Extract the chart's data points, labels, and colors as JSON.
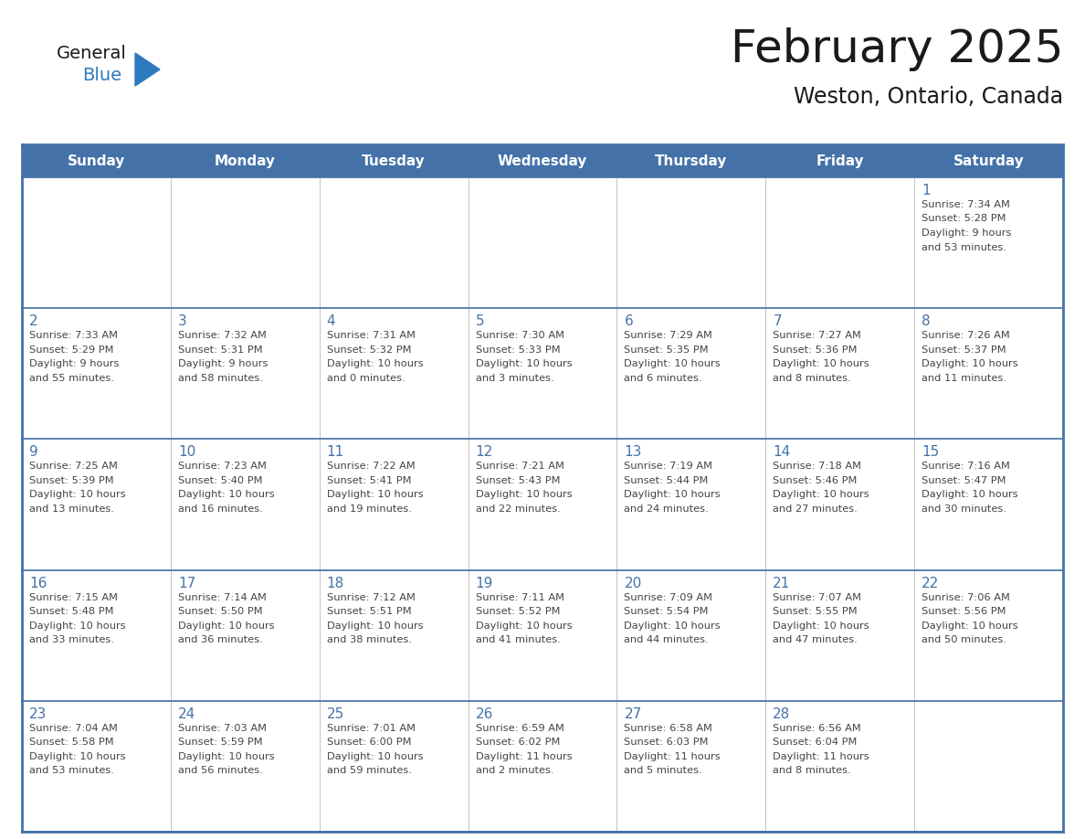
{
  "title": "February 2025",
  "subtitle": "Weston, Ontario, Canada",
  "days_of_week": [
    "Sunday",
    "Monday",
    "Tuesday",
    "Wednesday",
    "Thursday",
    "Friday",
    "Saturday"
  ],
  "header_bg": "#4472A8",
  "header_text": "#FFFFFF",
  "cell_bg_light": "#F0F0F0",
  "cell_bg_white": "#FFFFFF",
  "border_color": "#4472A8",
  "day_num_color": "#4472A8",
  "cell_text_color": "#444444",
  "title_color": "#1a1a1a",
  "logo_general_color": "#1a1a1a",
  "logo_blue_color": "#2e7abf",
  "weeks": [
    [
      {
        "day": null,
        "sunrise": null,
        "sunset": null,
        "daylight": null
      },
      {
        "day": null,
        "sunrise": null,
        "sunset": null,
        "daylight": null
      },
      {
        "day": null,
        "sunrise": null,
        "sunset": null,
        "daylight": null
      },
      {
        "day": null,
        "sunrise": null,
        "sunset": null,
        "daylight": null
      },
      {
        "day": null,
        "sunrise": null,
        "sunset": null,
        "daylight": null
      },
      {
        "day": null,
        "sunrise": null,
        "sunset": null,
        "daylight": null
      },
      {
        "day": 1,
        "sunrise": "7:34 AM",
        "sunset": "5:28 PM",
        "daylight": "9 hours\nand 53 minutes."
      }
    ],
    [
      {
        "day": 2,
        "sunrise": "7:33 AM",
        "sunset": "5:29 PM",
        "daylight": "9 hours\nand 55 minutes."
      },
      {
        "day": 3,
        "sunrise": "7:32 AM",
        "sunset": "5:31 PM",
        "daylight": "9 hours\nand 58 minutes."
      },
      {
        "day": 4,
        "sunrise": "7:31 AM",
        "sunset": "5:32 PM",
        "daylight": "10 hours\nand 0 minutes."
      },
      {
        "day": 5,
        "sunrise": "7:30 AM",
        "sunset": "5:33 PM",
        "daylight": "10 hours\nand 3 minutes."
      },
      {
        "day": 6,
        "sunrise": "7:29 AM",
        "sunset": "5:35 PM",
        "daylight": "10 hours\nand 6 minutes."
      },
      {
        "day": 7,
        "sunrise": "7:27 AM",
        "sunset": "5:36 PM",
        "daylight": "10 hours\nand 8 minutes."
      },
      {
        "day": 8,
        "sunrise": "7:26 AM",
        "sunset": "5:37 PM",
        "daylight": "10 hours\nand 11 minutes."
      }
    ],
    [
      {
        "day": 9,
        "sunrise": "7:25 AM",
        "sunset": "5:39 PM",
        "daylight": "10 hours\nand 13 minutes."
      },
      {
        "day": 10,
        "sunrise": "7:23 AM",
        "sunset": "5:40 PM",
        "daylight": "10 hours\nand 16 minutes."
      },
      {
        "day": 11,
        "sunrise": "7:22 AM",
        "sunset": "5:41 PM",
        "daylight": "10 hours\nand 19 minutes."
      },
      {
        "day": 12,
        "sunrise": "7:21 AM",
        "sunset": "5:43 PM",
        "daylight": "10 hours\nand 22 minutes."
      },
      {
        "day": 13,
        "sunrise": "7:19 AM",
        "sunset": "5:44 PM",
        "daylight": "10 hours\nand 24 minutes."
      },
      {
        "day": 14,
        "sunrise": "7:18 AM",
        "sunset": "5:46 PM",
        "daylight": "10 hours\nand 27 minutes."
      },
      {
        "day": 15,
        "sunrise": "7:16 AM",
        "sunset": "5:47 PM",
        "daylight": "10 hours\nand 30 minutes."
      }
    ],
    [
      {
        "day": 16,
        "sunrise": "7:15 AM",
        "sunset": "5:48 PM",
        "daylight": "10 hours\nand 33 minutes."
      },
      {
        "day": 17,
        "sunrise": "7:14 AM",
        "sunset": "5:50 PM",
        "daylight": "10 hours\nand 36 minutes."
      },
      {
        "day": 18,
        "sunrise": "7:12 AM",
        "sunset": "5:51 PM",
        "daylight": "10 hours\nand 38 minutes."
      },
      {
        "day": 19,
        "sunrise": "7:11 AM",
        "sunset": "5:52 PM",
        "daylight": "10 hours\nand 41 minutes."
      },
      {
        "day": 20,
        "sunrise": "7:09 AM",
        "sunset": "5:54 PM",
        "daylight": "10 hours\nand 44 minutes."
      },
      {
        "day": 21,
        "sunrise": "7:07 AM",
        "sunset": "5:55 PM",
        "daylight": "10 hours\nand 47 minutes."
      },
      {
        "day": 22,
        "sunrise": "7:06 AM",
        "sunset": "5:56 PM",
        "daylight": "10 hours\nand 50 minutes."
      }
    ],
    [
      {
        "day": 23,
        "sunrise": "7:04 AM",
        "sunset": "5:58 PM",
        "daylight": "10 hours\nand 53 minutes."
      },
      {
        "day": 24,
        "sunrise": "7:03 AM",
        "sunset": "5:59 PM",
        "daylight": "10 hours\nand 56 minutes."
      },
      {
        "day": 25,
        "sunrise": "7:01 AM",
        "sunset": "6:00 PM",
        "daylight": "10 hours\nand 59 minutes."
      },
      {
        "day": 26,
        "sunrise": "6:59 AM",
        "sunset": "6:02 PM",
        "daylight": "11 hours\nand 2 minutes."
      },
      {
        "day": 27,
        "sunrise": "6:58 AM",
        "sunset": "6:03 PM",
        "daylight": "11 hours\nand 5 minutes."
      },
      {
        "day": 28,
        "sunrise": "6:56 AM",
        "sunset": "6:04 PM",
        "daylight": "11 hours\nand 8 minutes."
      },
      {
        "day": null,
        "sunrise": null,
        "sunset": null,
        "daylight": null
      }
    ]
  ]
}
